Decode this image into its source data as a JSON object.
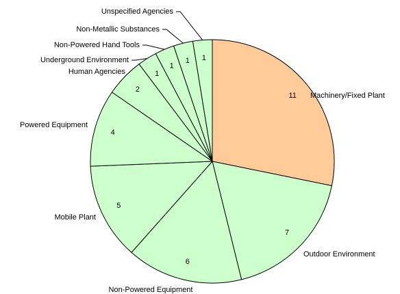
{
  "chart_data": {
    "type": "pie",
    "categories": [
      "Machinery/Fixed Plant",
      "Outdoor Environment",
      "Non-Powered Equipment",
      "Mobile Plant",
      "Powered Equipment",
      "Human Agencies",
      "Underground Environment",
      "Non-Powered Hand Tools",
      "Non-Metallic Substances",
      "Unspecified Agencies"
    ],
    "values": [
      11,
      7,
      6,
      5,
      4,
      2,
      1,
      1,
      1,
      1
    ],
    "colors": [
      "#ffcc99",
      "#ccffcc",
      "#ccffcc",
      "#ccffcc",
      "#ccffcc",
      "#ccffcc",
      "#ccffcc",
      "#ccffcc",
      "#ccffcc",
      "#ccffcc"
    ]
  }
}
